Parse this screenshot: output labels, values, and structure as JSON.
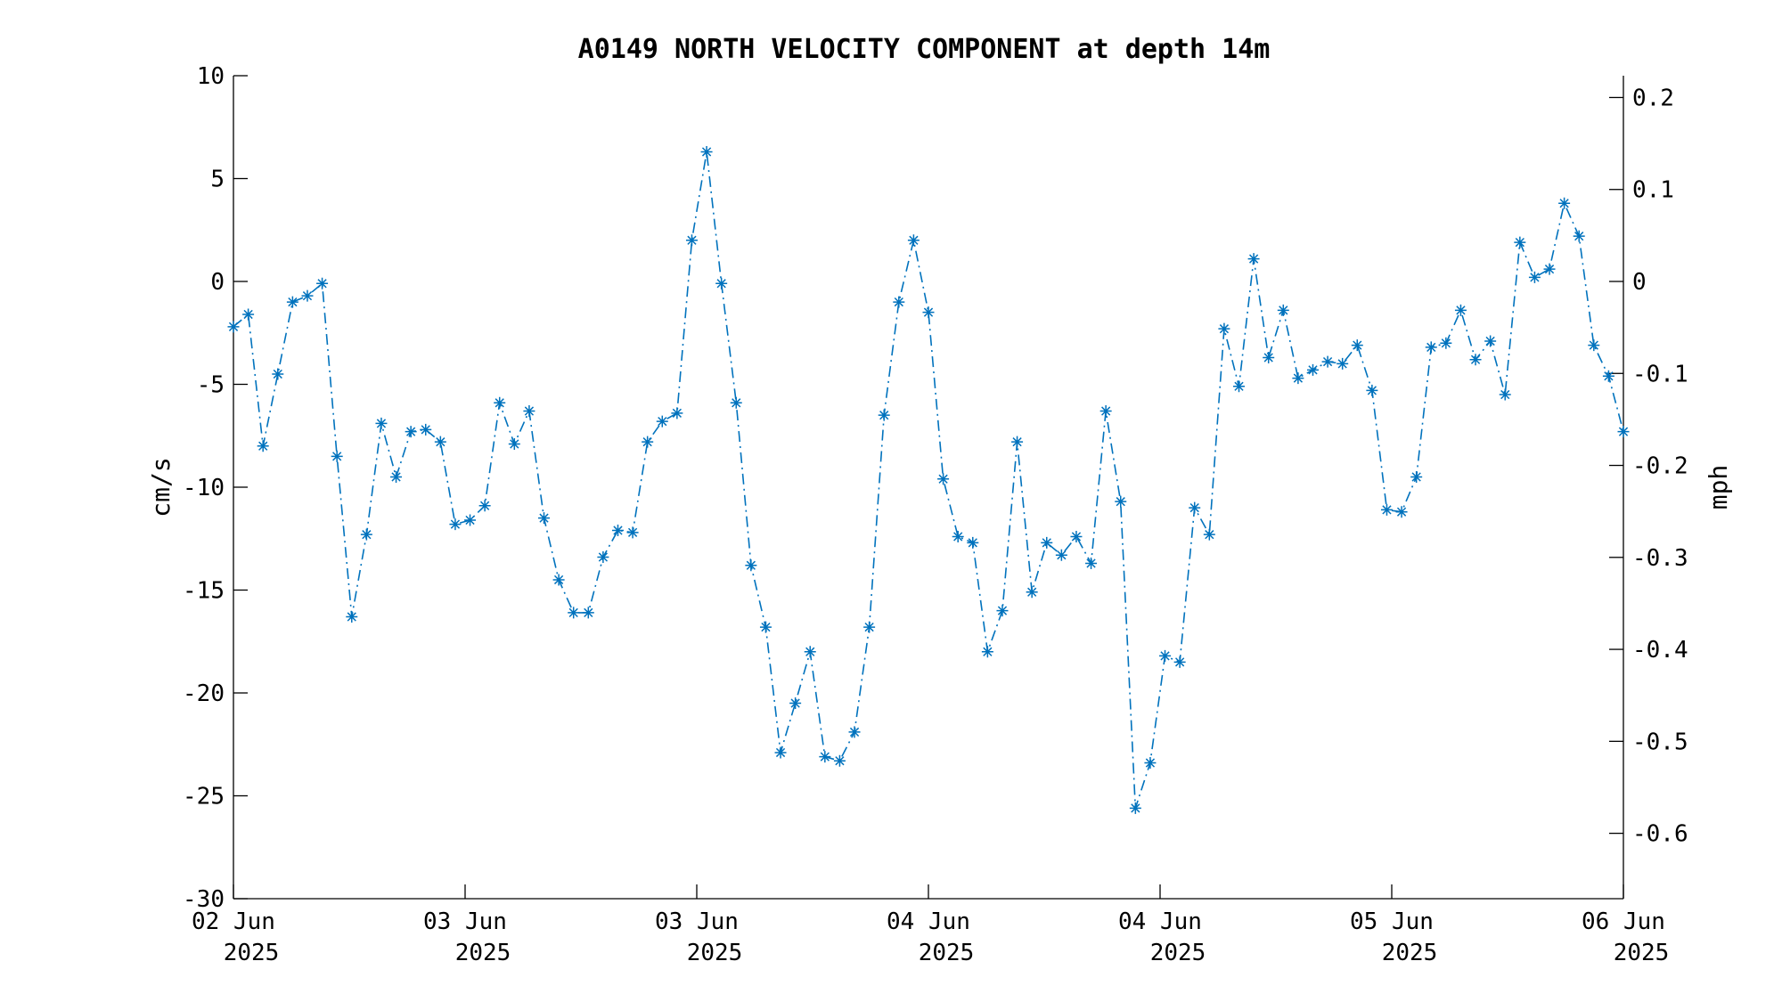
{
  "chart_data": {
    "type": "line",
    "title": "A0149 NORTH VELOCITY COMPONENT at depth 14m",
    "xlabel": "",
    "ylabel": "cm/s",
    "ylabel_right": "mph",
    "ylim": [
      -30,
      10
    ],
    "y_ticks": [
      "10",
      "5",
      "0",
      "-5",
      "-10",
      "-15",
      "-20",
      "-25",
      "-30"
    ],
    "y_right_ticks": [
      "0.2",
      "0.1",
      "0",
      "-0.1",
      "-0.2",
      "-0.3",
      "-0.4",
      "-0.5",
      "-0.6"
    ],
    "x_ticks": [
      {
        "day": "02 Jun",
        "year": "2025"
      },
      {
        "day": "03 Jun",
        "year": "2025"
      },
      {
        "day": "03 Jun",
        "year": "2025"
      },
      {
        "day": "04 Jun",
        "year": "2025"
      },
      {
        "day": "04 Jun",
        "year": "2025"
      },
      {
        "day": "05 Jun",
        "year": "2025"
      },
      {
        "day": "06 Jun",
        "year": "2025"
      }
    ],
    "grid": false,
    "marker": "asterisk",
    "line_style": "dash-dot",
    "color": "#0072BD",
    "series": [
      {
        "values": [
          -2.2,
          -1.6,
          -8.0,
          -4.5,
          -1.0,
          -0.7,
          -0.1,
          -8.5,
          -16.3,
          -12.3,
          -6.9,
          -9.5,
          -7.3,
          -7.2,
          -7.8,
          -11.8,
          -11.6,
          -10.9,
          -5.9,
          -7.9,
          -6.3,
          -11.5,
          -14.5,
          -16.1,
          -16.1,
          -13.4,
          -12.1,
          -12.2,
          -7.8,
          -6.8,
          -6.4,
          2.0,
          6.3,
          -0.1,
          -5.9,
          -13.8,
          -16.8,
          -22.9,
          -20.5,
          -18.0,
          -23.1,
          -23.3,
          -21.9,
          -16.8,
          -6.5,
          -1.0,
          2.0,
          -1.5,
          -9.6,
          -12.4,
          -12.7,
          -18.0,
          -16.0,
          -7.8,
          -15.1,
          -12.7,
          -13.3,
          -12.4,
          -13.7,
          -6.3,
          -10.7,
          -25.6,
          -23.4,
          -18.2,
          -18.5,
          -11.0,
          -12.3,
          -2.3,
          -5.1,
          1.1,
          -3.7,
          -1.4,
          -4.7,
          -4.3,
          -3.9,
          -4.0,
          -3.1,
          -5.3,
          -11.1,
          -11.2,
          -9.5,
          -3.2,
          -3.0,
          -1.4,
          -3.8,
          -2.9,
          -5.5,
          1.9,
          0.2,
          0.6,
          3.8,
          2.2,
          -3.1,
          -4.6,
          -7.3
        ]
      }
    ]
  }
}
